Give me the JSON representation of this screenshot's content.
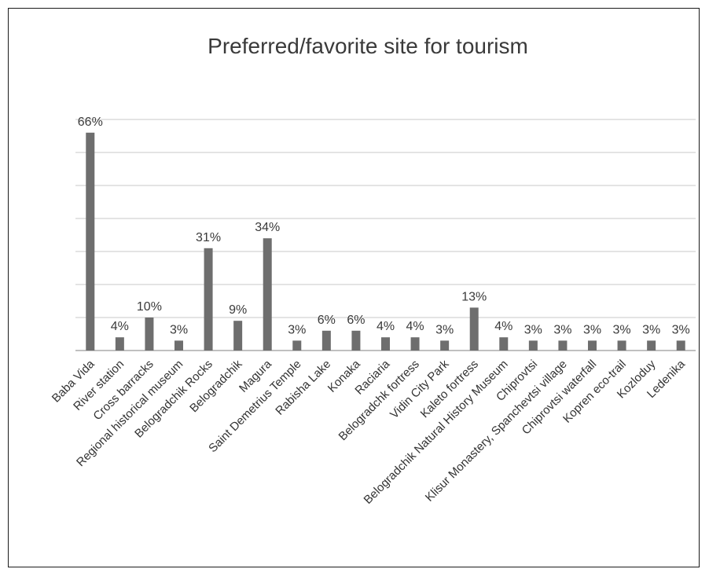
{
  "chart_data": {
    "type": "bar",
    "title": "Preferred/favorite site for tourism",
    "categories": [
      "Baba Vida",
      "River station",
      "Cross barracks",
      "Regional historical museum",
      "Belogradchik Rocks",
      "Belogradchik",
      "Magura",
      "Saint Demetrius Temple",
      "Rabisha Lake",
      "Konaka",
      "Raciaria",
      "Belogradchk fortress",
      "Vidin City Park",
      "Kaleto fortress",
      "Belogradchik Natural History Museum",
      "Chiprovtsi",
      "Klisur Monastery, Spanchevtsi village",
      "Chiprovtsi waterfall",
      "Kopren eco-trail",
      "Kozloduy",
      "Ledenika"
    ],
    "values": [
      66,
      4,
      10,
      3,
      31,
      9,
      34,
      3,
      6,
      6,
      4,
      4,
      3,
      13,
      4,
      3,
      3,
      3,
      3,
      3,
      3
    ],
    "value_labels": [
      "66%",
      "4%",
      "10%",
      "3%",
      "31%",
      "9%",
      "34%",
      "3%",
      "6%",
      "6%",
      "4%",
      "4%",
      "3%",
      "13%",
      "4%",
      "3%",
      "3%",
      "3%",
      "3%",
      "3%",
      "3%"
    ],
    "ylim": [
      0,
      70
    ],
    "grid": true,
    "bar_color": "#6e6e6e"
  }
}
